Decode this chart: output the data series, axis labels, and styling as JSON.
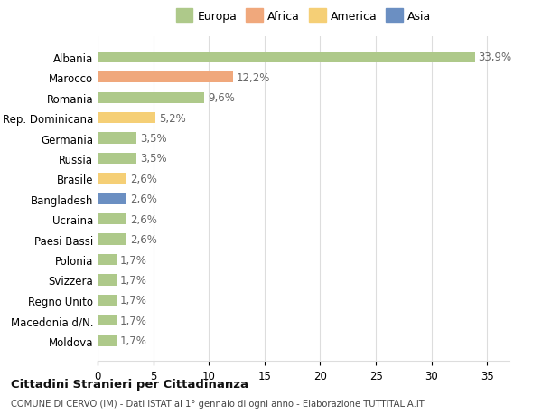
{
  "categories": [
    "Albania",
    "Marocco",
    "Romania",
    "Rep. Dominicana",
    "Germania",
    "Russia",
    "Brasile",
    "Bangladesh",
    "Ucraina",
    "Paesi Bassi",
    "Polonia",
    "Svizzera",
    "Regno Unito",
    "Macedonia d/N.",
    "Moldova"
  ],
  "values": [
    33.9,
    12.2,
    9.6,
    5.2,
    3.5,
    3.5,
    2.6,
    2.6,
    2.6,
    2.6,
    1.7,
    1.7,
    1.7,
    1.7,
    1.7
  ],
  "labels": [
    "33,9%",
    "12,2%",
    "9,6%",
    "5,2%",
    "3,5%",
    "3,5%",
    "2,6%",
    "2,6%",
    "2,6%",
    "2,6%",
    "1,7%",
    "1,7%",
    "1,7%",
    "1,7%",
    "1,7%"
  ],
  "colors": [
    "#aec98a",
    "#f0a87c",
    "#aec98a",
    "#f5cf76",
    "#aec98a",
    "#aec98a",
    "#f5cf76",
    "#6b8fc2",
    "#aec98a",
    "#aec98a",
    "#aec98a",
    "#aec98a",
    "#aec98a",
    "#aec98a",
    "#aec98a"
  ],
  "legend_labels": [
    "Europa",
    "Africa",
    "America",
    "Asia"
  ],
  "legend_colors": [
    "#aec98a",
    "#f0a87c",
    "#f5cf76",
    "#6b8fc2"
  ],
  "xlim": [
    0,
    37
  ],
  "xticks": [
    0,
    5,
    10,
    15,
    20,
    25,
    30,
    35
  ],
  "background_color": "#ffffff",
  "grid_color": "#dddddd",
  "title_main": "Cittadini Stranieri per Cittadinanza",
  "title_sub": "COMUNE DI CERVO (IM) - Dati ISTAT al 1° gennaio di ogni anno - Elaborazione TUTTITALIA.IT",
  "label_fontsize": 8.5,
  "tick_fontsize": 8.5,
  "value_fontsize": 8.5,
  "bar_height": 0.55
}
